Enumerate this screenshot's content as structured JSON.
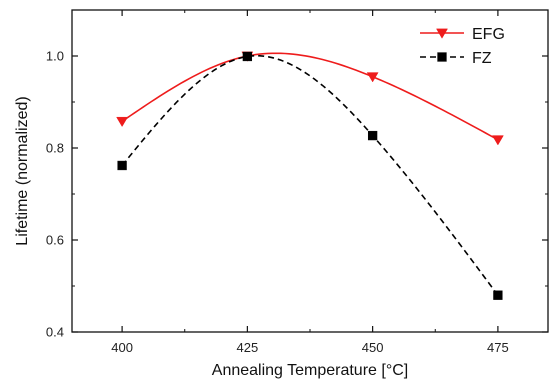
{
  "chart_data": {
    "type": "line",
    "title": "",
    "xlabel": "Annealing Temperature [°C]",
    "ylabel": "Lifetime (normalized)",
    "xlim": [
      390,
      485
    ],
    "ylim": [
      0.4,
      1.1
    ],
    "xticks": [
      400,
      425,
      450,
      475
    ],
    "yticks": [
      0.4,
      0.6,
      0.8,
      1.0
    ],
    "xtick_labels": [
      "400",
      "425",
      "450",
      "475"
    ],
    "ytick_labels": [
      "0.4",
      "0.6",
      "0.8",
      "1.0"
    ],
    "grid": false,
    "legend_position": "top-right",
    "series": [
      {
        "name": "EFG",
        "color": "#ee1c1c",
        "marker": "triangle-down",
        "line_style": "solid",
        "x": [
          400,
          425,
          450,
          475
        ],
        "y": [
          0.858,
          1.0,
          0.955,
          0.818
        ]
      },
      {
        "name": "FZ",
        "color": "#000000",
        "marker": "square",
        "line_style": "dashed",
        "x": [
          400,
          425,
          450,
          475
        ],
        "y": [
          0.762,
          0.999,
          0.827,
          0.48
        ]
      }
    ]
  }
}
